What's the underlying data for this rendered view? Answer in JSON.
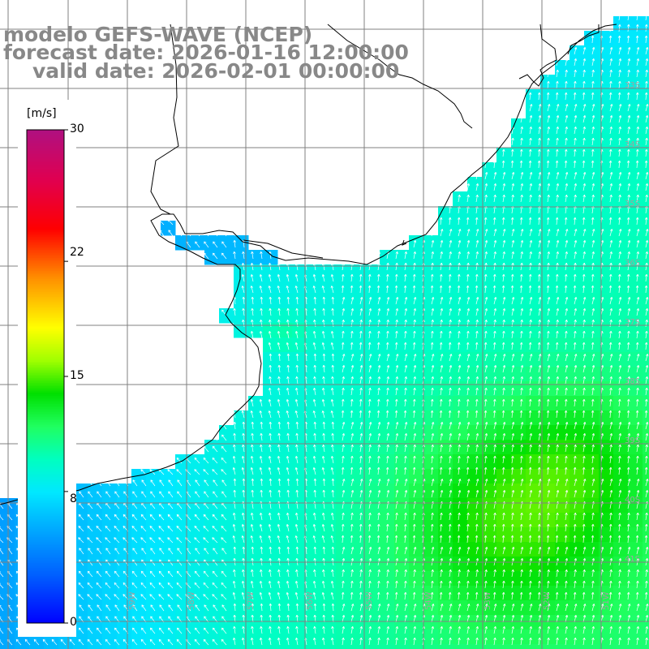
{
  "title": {
    "line1": "modelo GEFS-WAVE (NCEP)",
    "line2": "forecast date: 2026-01-16 12:00:00",
    "line3": "valid date: 2026-02-01 00:00:00"
  },
  "colorbar": {
    "unit": "[m/s]",
    "min": 0,
    "max": 30,
    "tick_labels": [
      "30",
      "22",
      "15",
      "8",
      "0"
    ],
    "tick_values": [
      30,
      22,
      15,
      8,
      0
    ],
    "colors": [
      "#0000ff",
      "#0080ff",
      "#00e5ff",
      "#00ff80",
      "#00e000",
      "#a0ff00",
      "#ffff00",
      "#ff9000",
      "#ff0000",
      "#d00060",
      "#b01080"
    ]
  },
  "map": {
    "lon_labels": [
      "60W",
      "59W",
      "58W",
      "57W",
      "56W",
      "55W",
      "54W",
      "53W",
      "52W",
      "51W"
    ],
    "lat_labels": [
      "33S",
      "34S",
      "35S",
      "36S",
      "37S",
      "38S",
      "39S",
      "40S",
      "41S"
    ],
    "field": "wind speed with direction arrows",
    "land_color": "#ffffff",
    "grid_color": "#808080",
    "coast_color": "#000000",
    "arrow_color": "#ffffff"
  }
}
